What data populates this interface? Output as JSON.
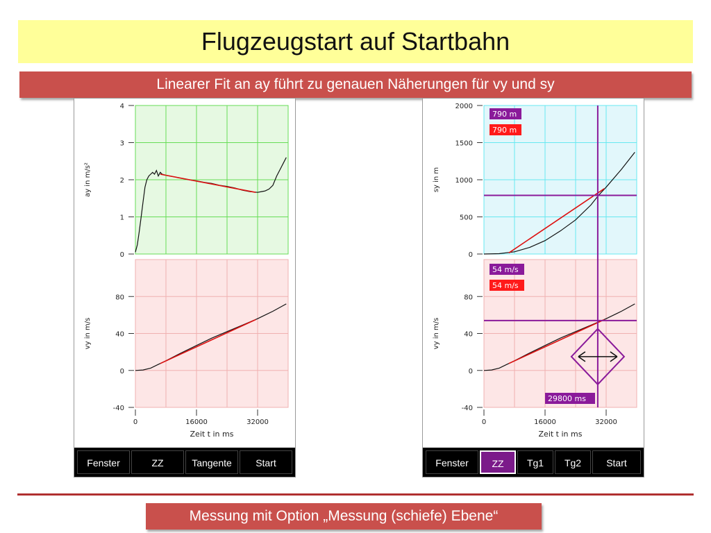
{
  "slide": {
    "title": "Flugzeugstart auf Startbahn",
    "subtitle": "Linearer Fit an ay führt zu genauen Näherungen für vy und sy",
    "footer": "Messung mit Option „Messung (schiefe) Ebene“"
  },
  "colors": {
    "title_bg": "#ffff99",
    "banner_bg": "#c9504c",
    "green_plot_bg": "#e6f9e2",
    "green_grid": "#66dd55",
    "cyan_plot_bg": "#e2f7fb",
    "cyan_grid": "#66e8f0",
    "red_plot_bg": "#fde6e6",
    "red_grid": "#f0b0b0",
    "fit_line": "#dd1111",
    "cursor": "#8a1a9a"
  },
  "left_panel": {
    "buttons": [
      "Fenster",
      "ZZ",
      "Tangente",
      "Start"
    ]
  },
  "right_panel": {
    "buttons": [
      "Fenster",
      "ZZ",
      "Tg1",
      "Tg2",
      "Start"
    ],
    "active_button": "ZZ",
    "readouts": {
      "sy_purple": "790 m",
      "sy_red": "790 m",
      "vy_purple": "54 m/s",
      "vy_red": "54 m/s",
      "time": "29800 ms"
    },
    "cursor": {
      "t": 29800,
      "sy": 790,
      "vy": 54
    }
  },
  "chart_data": [
    {
      "id": "left-ay",
      "type": "line",
      "ylabel": "ay in m/s²",
      "ylim": [
        0,
        4
      ],
      "yticks": [
        0,
        1,
        2,
        3,
        4
      ],
      "xlim": [
        0,
        40000
      ],
      "x": [
        0,
        500,
        1000,
        1500,
        2000,
        2500,
        3000,
        3500,
        4000,
        4500,
        5000,
        5500,
        6000,
        6500,
        7000,
        8000,
        9000,
        10000,
        12000,
        14000,
        16000,
        18000,
        20000,
        22000,
        24000,
        26000,
        28000,
        30000,
        32000,
        33000,
        34000,
        35000,
        36000,
        37000,
        38000,
        39000,
        39500
      ],
      "series": [
        {
          "role": "measured",
          "values": [
            0.05,
            0.25,
            0.6,
            1.0,
            1.4,
            1.8,
            2.0,
            2.1,
            2.15,
            2.2,
            2.15,
            2.25,
            2.1,
            2.2,
            2.15,
            2.12,
            2.1,
            2.08,
            2.04,
            2.0,
            1.97,
            1.93,
            1.9,
            1.85,
            1.82,
            1.78,
            1.72,
            1.68,
            1.66,
            1.68,
            1.7,
            1.75,
            1.85,
            2.1,
            2.3,
            2.5,
            2.6
          ]
        },
        {
          "role": "fit",
          "x": [
            6500,
            31500
          ],
          "values": [
            2.15,
            1.66
          ]
        }
      ]
    },
    {
      "id": "left-vy",
      "type": "line",
      "ylabel": "vy in m/s",
      "xlabel": "Zeit t in ms",
      "ylim": [
        -40,
        120
      ],
      "yticks": [
        -40,
        0,
        40,
        80
      ],
      "xlim": [
        0,
        40000
      ],
      "xticks": [
        0,
        16000,
        32000
      ],
      "x": [
        0,
        2000,
        4000,
        6000,
        8000,
        12000,
        16000,
        20000,
        24000,
        28000,
        32000,
        36000,
        39500
      ],
      "series": [
        {
          "role": "measured",
          "values": [
            0,
            0.5,
            2.5,
            6.5,
            10.5,
            19,
            27,
            35,
            42,
            49,
            56,
            64,
            72
          ]
        },
        {
          "role": "fit",
          "x": [
            6500,
            31500
          ],
          "values": [
            7.5,
            55
          ]
        }
      ]
    },
    {
      "id": "right-sy",
      "type": "line",
      "ylabel": "sy in m",
      "ylim": [
        0,
        2000
      ],
      "yticks": [
        0,
        500,
        1000,
        1500,
        2000
      ],
      "xlim": [
        0,
        40000
      ],
      "x": [
        0,
        4000,
        8000,
        12000,
        16000,
        20000,
        24000,
        28000,
        30000,
        32000,
        36000,
        39500
      ],
      "series": [
        {
          "role": "measured",
          "values": [
            0,
            5,
            30,
            90,
            180,
            310,
            460,
            660,
            790,
            900,
            1140,
            1370
          ]
        },
        {
          "role": "fit",
          "x": [
            6500,
            31500
          ],
          "values": [
            15,
            880
          ]
        }
      ]
    },
    {
      "id": "right-vy",
      "type": "line",
      "ylabel": "vy in m/s",
      "xlabel": "Zeit t in ms",
      "ylim": [
        -40,
        120
      ],
      "yticks": [
        -40,
        0,
        40,
        80
      ],
      "xlim": [
        0,
        40000
      ],
      "xticks": [
        0,
        16000,
        32000
      ],
      "x": [
        0,
        2000,
        4000,
        6000,
        8000,
        12000,
        16000,
        20000,
        24000,
        28000,
        32000,
        36000,
        39500
      ],
      "series": [
        {
          "role": "measured",
          "values": [
            0,
            0.5,
            2.5,
            6.5,
            10.5,
            19,
            27,
            35,
            42,
            49,
            56,
            64,
            72
          ]
        },
        {
          "role": "fit",
          "x": [
            6500,
            31500
          ],
          "values": [
            7.5,
            55
          ]
        }
      ]
    }
  ]
}
